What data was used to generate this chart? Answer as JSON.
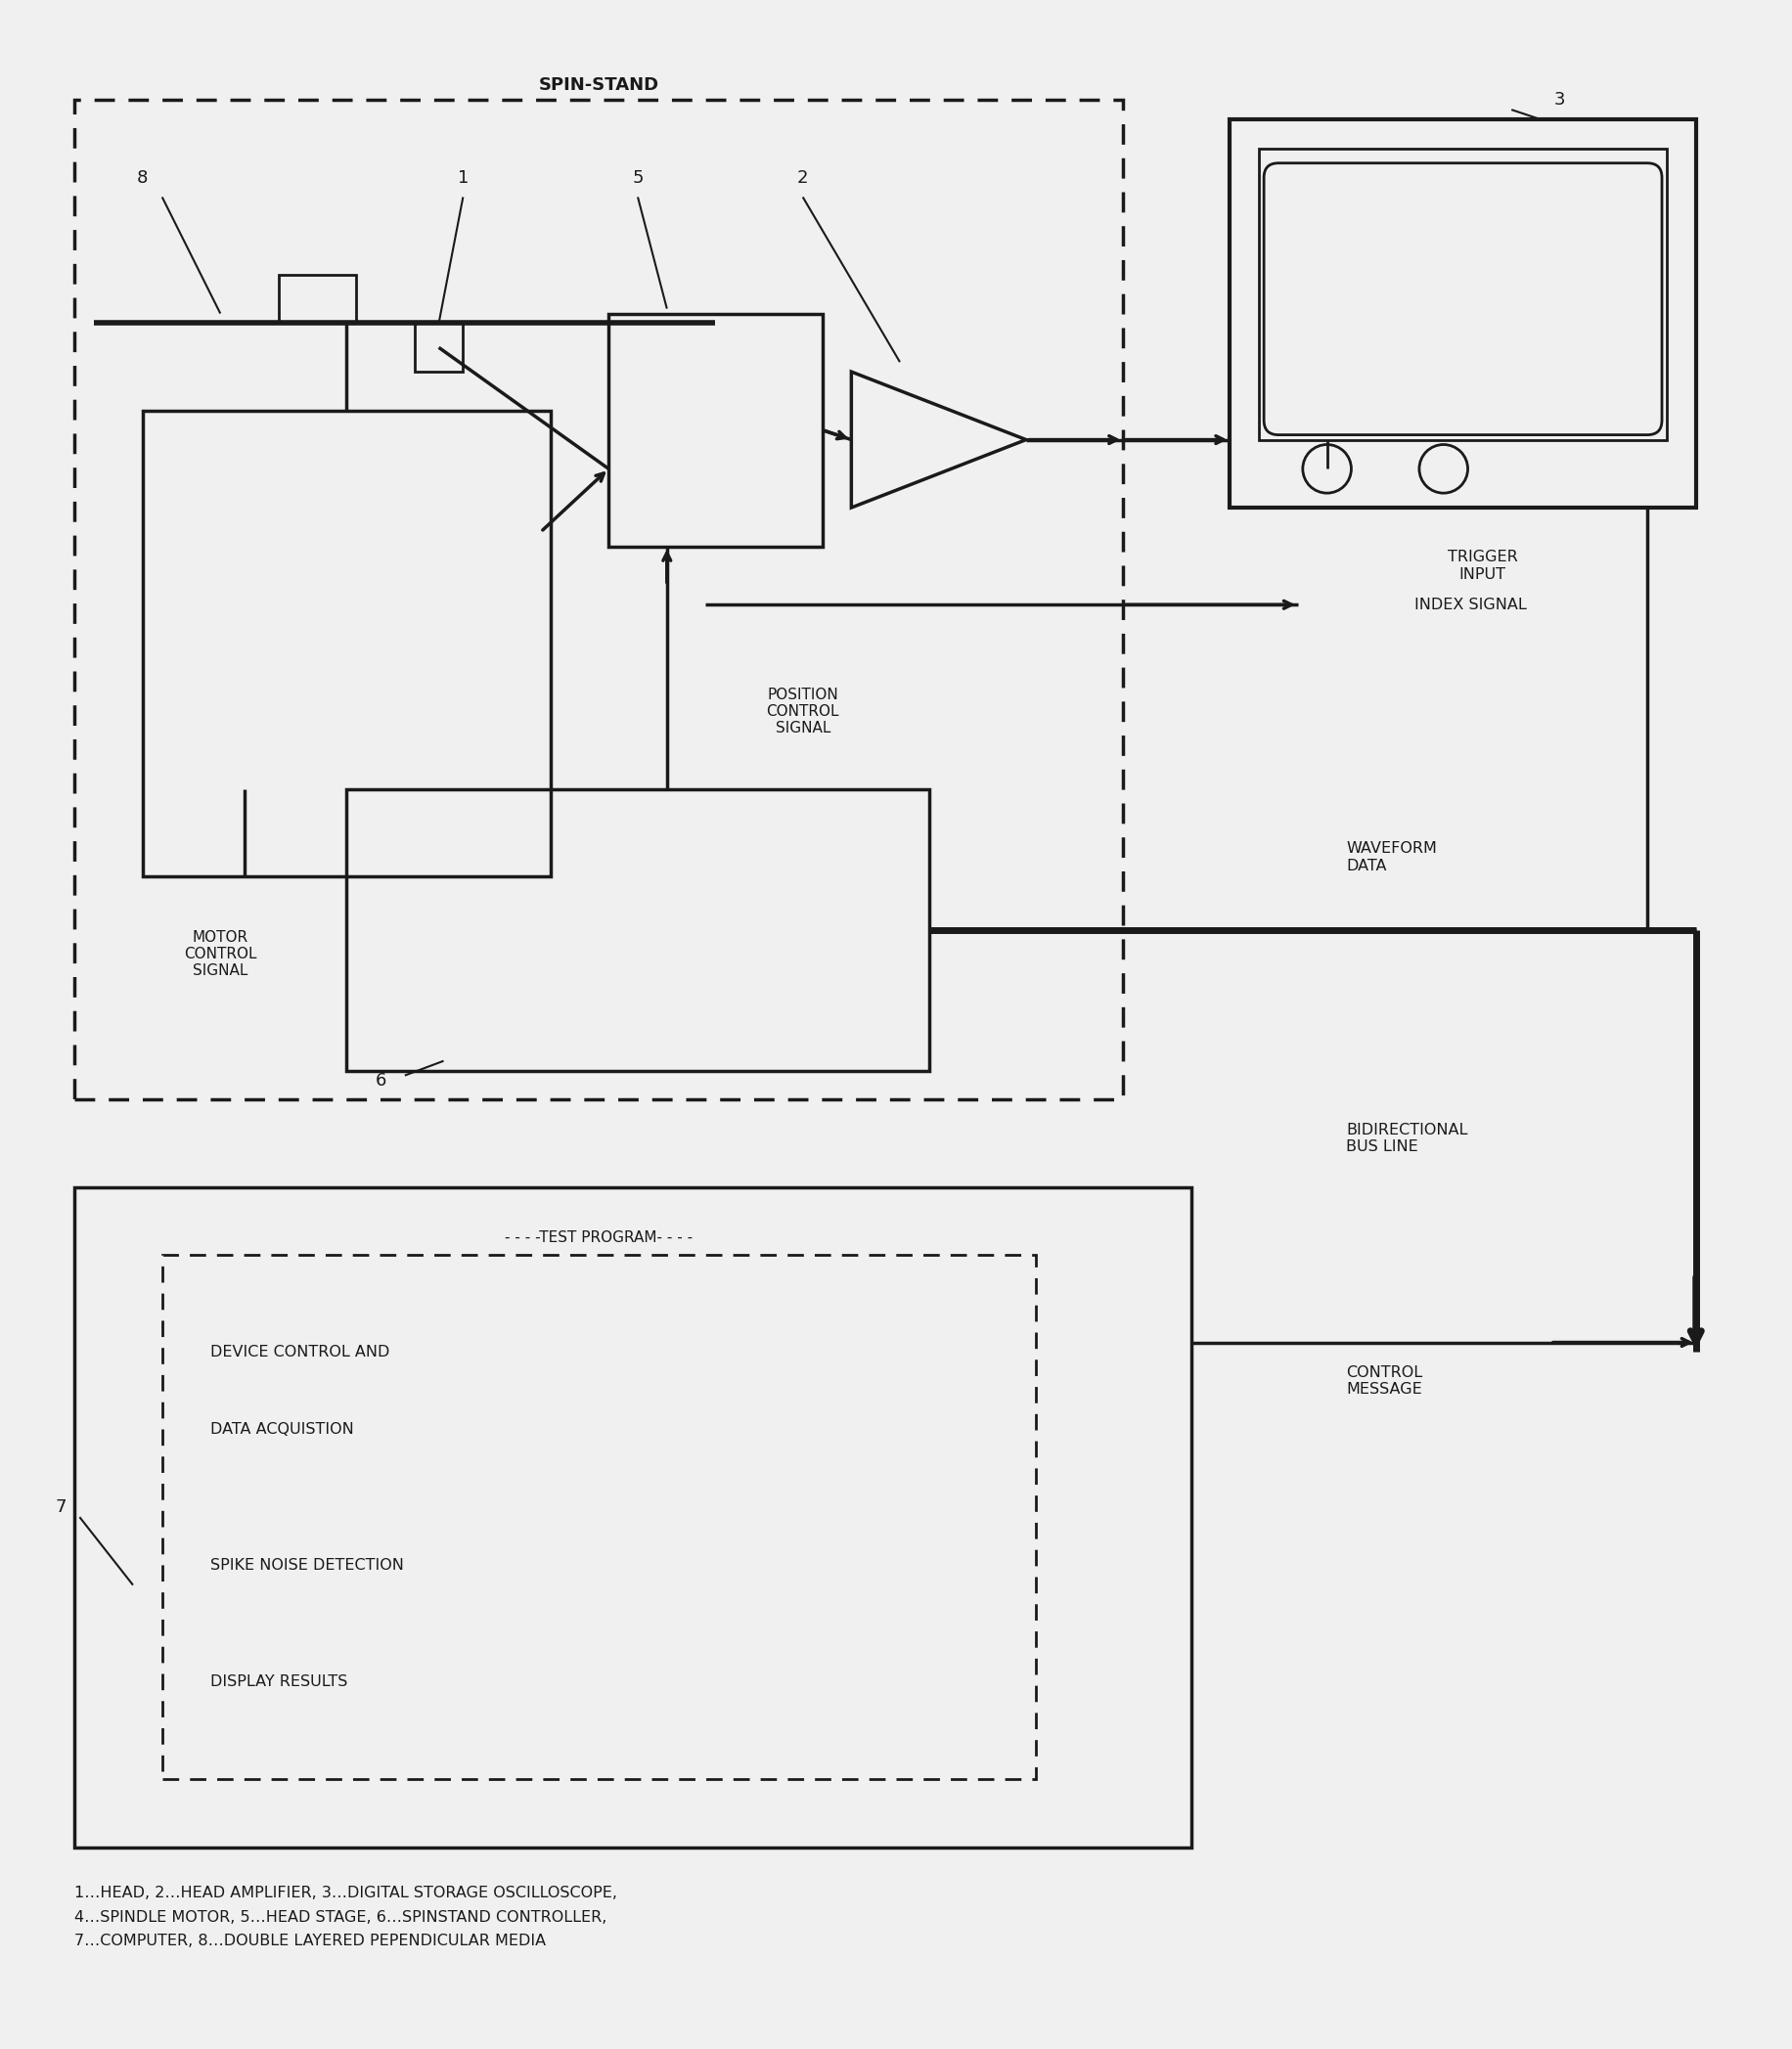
{
  "bg_color": "#f0f0f0",
  "line_color": "#1a1a1a",
  "fig_width": 18.32,
  "fig_height": 20.95,
  "legend_text": "1…HEAD, 2…HEAD AMPLIFIER, 3…DIGITAL STORAGE OSCILLOSCOPE,\n4…SPINDLE MOTOR, 5…HEAD STAGE, 6…SPINSTAND CONTROLLER,\n7…COMPUTER, 8…DOUBLE LAYERED PEPENDICULAR MEDIA",
  "spin_stand_label": "SPIN-STAND",
  "trigger_input": "TRIGGER\nINPUT",
  "index_signal": "INDEX SIGNAL",
  "position_control": "POSITION\nCONTROL\nSIGNAL",
  "motor_control": "MOTOR\nCONTROL\nSIGNAL",
  "waveform_data": "WAVEFORM\nDATA",
  "bidirectional": "BIDIRECTIONAL\nBUS LINE",
  "control_message": "CONTROL\nMESSAGE",
  "test_program": "- - - -TEST PROGRAM- - - -",
  "device_control": "DEVICE CONTROL AND",
  "data_acq": "DATA ACQUISTION",
  "spike_noise": "SPIKE NOISE DETECTION",
  "display_results": "DISPLAY RESULTS"
}
